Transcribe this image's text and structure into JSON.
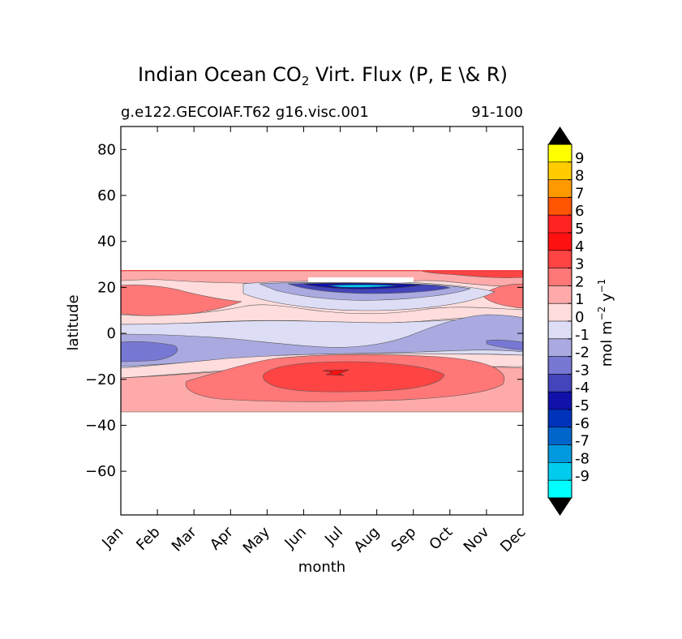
{
  "chart_data": {
    "type": "heatmap",
    "title_main": "Indian Ocean CO",
    "title_sub": "2",
    "title_rest": " Virt. Flux (P, E \\& R)",
    "subtitle_left": "g.e122.GECOIAF.T62 g16.visc.001",
    "subtitle_right": "91-100",
    "xlabel": "month",
    "ylabel": "latitude",
    "x_categories": [
      "Jan",
      "Feb",
      "Mar",
      "Apr",
      "May",
      "Jun",
      "Jul",
      "Aug",
      "Sep",
      "Oct",
      "Nov",
      "Dec"
    ],
    "y_ticks": [
      80,
      60,
      40,
      20,
      0,
      -20,
      -40,
      -60
    ],
    "y_tick_labels": [
      "80",
      "60",
      "40",
      "20",
      "0",
      "−20",
      "−40",
      "−60"
    ],
    "ylim": [
      -79,
      90
    ],
    "data_lat_range": [
      -34,
      27
    ],
    "colorbar": {
      "label_main": "mol m",
      "label_exp1": "−2",
      "label_mid": "  y",
      "label_exp2": "−1",
      "levels": [
        "9",
        "8",
        "7",
        "6",
        "5",
        "4",
        "3",
        "2",
        "1",
        "0",
        "-1",
        "-2",
        "-3",
        "-4",
        "-5",
        "-6",
        "-7",
        "-8",
        "-9"
      ],
      "colors": [
        "#ffff00",
        "#ffcc00",
        "#ff9900",
        "#ff5500",
        "#ff2222",
        "#ff1111",
        "#ff4444",
        "#ff7777",
        "#ffaaaa",
        "#ffdddd",
        "#ddddf5",
        "#aaaae0",
        "#7777d4",
        "#4444bb",
        "#1111aa",
        "#0033bb",
        "#0066cc",
        "#0099dd",
        "#00ccee",
        "#00ffff"
      ],
      "extend_color": "#000000"
    },
    "regions": [
      {
        "name": "north-edge-positive",
        "value": 2,
        "color": "#ffaaaa"
      },
      {
        "name": "north-edge-strong",
        "value": 4,
        "color": "#ff4444"
      },
      {
        "name": "arabian-sea-positive",
        "value": 2.5,
        "color": "#ff7777"
      },
      {
        "name": "monsoon-negative-core",
        "value": -4.5,
        "color": "#1111aa"
      },
      {
        "name": "equatorial-negative",
        "value": -1.5,
        "color": "#aaaae0"
      },
      {
        "name": "southern-positive",
        "value": 2,
        "color": "#ff7777"
      },
      {
        "name": "southern-core",
        "value": 3,
        "color": "#ff4444"
      }
    ]
  }
}
